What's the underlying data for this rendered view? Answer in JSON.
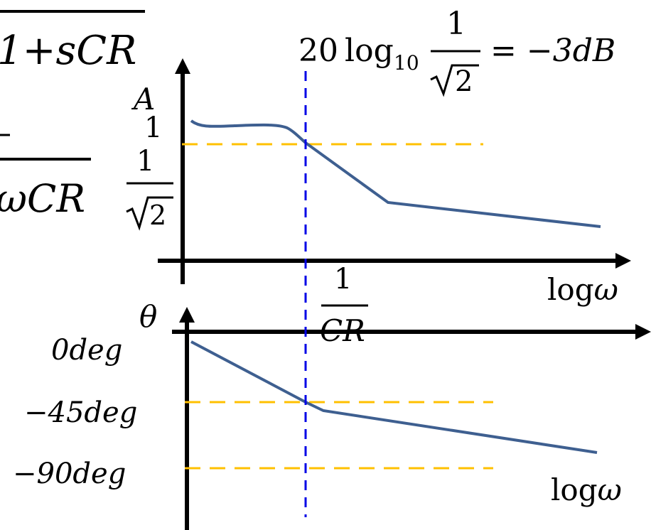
{
  "colors": {
    "curve": "#3e5f90",
    "reference_line": "#ffc000",
    "cutoff_line": "#0000e6",
    "axis": "#000000"
  },
  "formulas": {
    "top_fraction_denominator": "1+sCR",
    "left_fraction_denominator": "ωCR",
    "db_prefix": "20",
    "log_fn": "log",
    "log_base": "10",
    "db_numerator": "1",
    "db_root": "2",
    "db_rhs": "= −3dB"
  },
  "magnitude_plot": {
    "y_axis_label": "A",
    "tick_one": "1",
    "tick_inv_sqrt2_numerator": "1",
    "tick_inv_sqrt2_root": "2",
    "x_axis_label": "logω",
    "cutoff_numerator": "1",
    "cutoff_denominator": "CR"
  },
  "phase_plot": {
    "y_axis_label": "θ",
    "tick_0": "0deg",
    "tick_45": "−45deg",
    "tick_90": "−90deg",
    "x_axis_label": "logω"
  },
  "icons": {
    "arrowhead": "triangle-arrow"
  }
}
